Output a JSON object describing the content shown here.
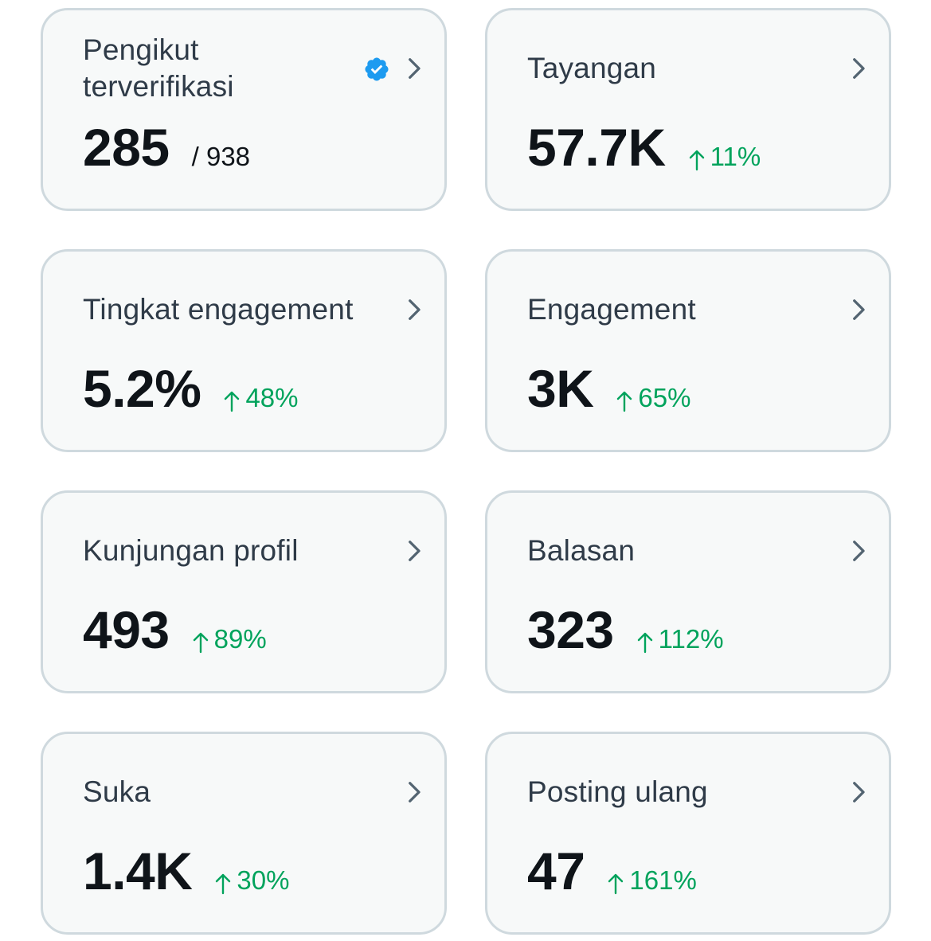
{
  "colors": {
    "card_bg": "#f7f9f9",
    "card_border": "#cfd9de",
    "title": "#2f3b48",
    "value": "#0f1419",
    "positive": "#00a35c",
    "verified": "#1d9bf0",
    "chevron": "#536471"
  },
  "cards": [
    {
      "title": "Pengikut terverifikasi",
      "value": "285",
      "total": "/ 938",
      "verified_icon": "verified-badge-icon"
    },
    {
      "title": "Tayangan",
      "value": "57.7K",
      "change": "11%"
    },
    {
      "title": "Tingkat engagement",
      "value": "5.2%",
      "change": "48%"
    },
    {
      "title": "Engagement",
      "value": "3K",
      "change": "65%"
    },
    {
      "title": "Kunjungan profil",
      "value": "493",
      "change": "89%"
    },
    {
      "title": "Balasan",
      "value": "323",
      "change": "112%"
    },
    {
      "title": "Suka",
      "value": "1.4K",
      "change": "30%"
    },
    {
      "title": "Posting ulang",
      "value": "47",
      "change": "161%"
    }
  ]
}
